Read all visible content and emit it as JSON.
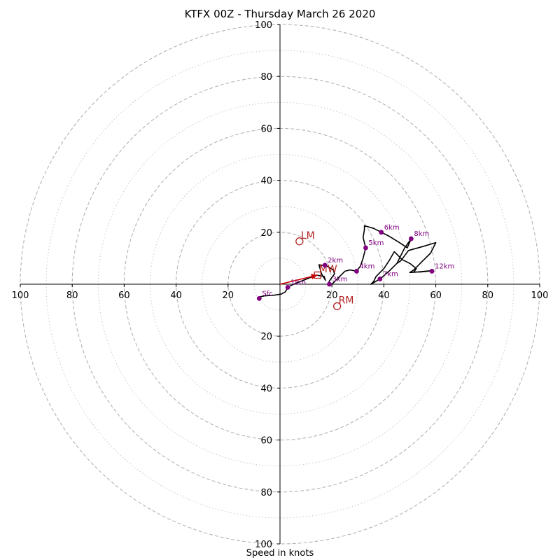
{
  "chart_data": {
    "type": "hodograph",
    "title": "KTFX 00Z - Thursday March 26 2020",
    "xlabel": "Speed in knots",
    "range": 100,
    "ring_major": [
      20,
      40,
      60,
      80,
      100
    ],
    "ring_minor": [
      10,
      30,
      50,
      70,
      90
    ],
    "tick_labels": [
      "20",
      "40",
      "60",
      "80",
      "100"
    ],
    "colors": {
      "trace": "#000000",
      "levels": "#800080",
      "motion": "#b22222",
      "mean_wind_arrow": "#cc0000",
      "grid": "#b3b3b3"
    },
    "trace": [
      [
        -8.5,
        -5
      ],
      [
        -6,
        -4.5
      ],
      [
        -2,
        -4.2
      ],
      [
        0.5,
        -3.8
      ],
      [
        2,
        -3
      ],
      [
        3.2,
        -1
      ],
      [
        6,
        0.3
      ],
      [
        9,
        1.5
      ],
      [
        11.5,
        2.5
      ],
      [
        14,
        3.5
      ],
      [
        17,
        3
      ],
      [
        17.5,
        1.5
      ],
      [
        16,
        4
      ],
      [
        15,
        7.5
      ],
      [
        18,
        7
      ],
      [
        20.5,
        5.5
      ],
      [
        21,
        4
      ],
      [
        19,
        1.2
      ],
      [
        18.5,
        0
      ],
      [
        19.8,
        -0.2
      ],
      [
        21.5,
        1.5
      ],
      [
        23,
        3
      ],
      [
        25,
        5
      ],
      [
        27,
        5.5
      ],
      [
        29.5,
        5
      ],
      [
        31,
        7
      ],
      [
        32,
        10
      ],
      [
        33,
        14
      ],
      [
        32,
        18
      ],
      [
        32.5,
        21
      ],
      [
        32.5,
        22.5
      ],
      [
        36,
        21.5
      ],
      [
        39,
        20
      ],
      [
        42,
        18.5
      ],
      [
        46,
        16
      ],
      [
        49,
        14
      ],
      [
        50.5,
        17.5
      ],
      [
        48,
        14
      ],
      [
        46,
        10
      ],
      [
        45,
        8
      ],
      [
        46.5,
        9
      ],
      [
        48,
        11
      ],
      [
        49.5,
        13
      ],
      [
        55,
        14.5
      ],
      [
        60,
        16
      ],
      [
        58,
        12
      ],
      [
        55,
        9
      ],
      [
        51.5,
        5.5
      ],
      [
        50,
        4.5
      ],
      [
        53,
        4.7
      ],
      [
        56,
        5
      ],
      [
        58.5,
        5.2
      ],
      [
        57,
        5
      ],
      [
        54,
        4.7
      ],
      [
        51.5,
        4.7
      ],
      [
        52.5,
        6
      ],
      [
        50,
        8
      ],
      [
        47,
        9.5
      ],
      [
        45,
        11.5
      ],
      [
        44,
        12.5
      ],
      [
        42,
        9
      ],
      [
        40,
        6
      ],
      [
        38.5,
        4.5
      ],
      [
        37,
        3
      ],
      [
        36,
        1
      ],
      [
        35,
        0
      ],
      [
        38.5,
        2
      ],
      [
        42,
        5
      ],
      [
        45,
        8
      ]
    ],
    "levels": [
      {
        "label": "Sfc",
        "u": -8,
        "v": -5.5
      },
      {
        "label": "1km",
        "u": 3,
        "v": -1.2
      },
      {
        "label": "2km",
        "u": 17.3,
        "v": 7.3
      },
      {
        "label": "3km",
        "u": 19,
        "v": 0
      },
      {
        "label": "4km",
        "u": 29.5,
        "v": 5
      },
      {
        "label": "5km",
        "u": 33,
        "v": 14
      },
      {
        "label": "6km",
        "u": 39,
        "v": 20
      },
      {
        "label": "7km",
        "u": 38.5,
        "v": 2
      },
      {
        "label": "8km",
        "u": 50.5,
        "v": 17.5
      },
      {
        "label": "12km",
        "u": 58.5,
        "v": 5
      }
    ],
    "storm_motion": [
      {
        "label": "LM",
        "u": 7.5,
        "v": 16.5,
        "marker": "circle"
      },
      {
        "label": "RM",
        "u": 22,
        "v": -8.5,
        "marker": "circle"
      },
      {
        "label": "MW",
        "u": 14.5,
        "v": 3.5,
        "marker": "square"
      }
    ],
    "mean_wind_vector": {
      "from": [
        0,
        0
      ],
      "to": [
        14.5,
        3.5
      ]
    }
  }
}
